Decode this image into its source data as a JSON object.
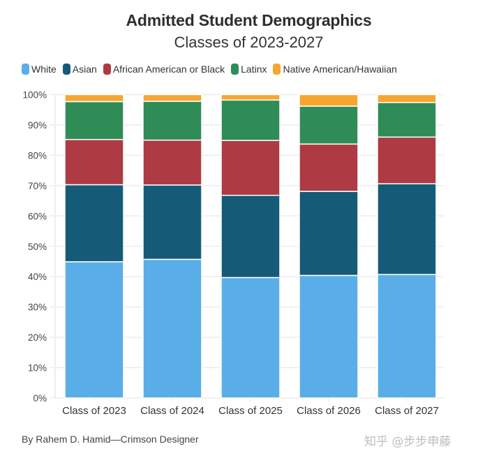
{
  "chart_data": {
    "type": "bar",
    "stacked": true,
    "title": "Admitted Student Demographics",
    "subtitle": "Classes of 2023-2027",
    "xlabel": "",
    "ylabel": "",
    "ylim": [
      0,
      100
    ],
    "y_ticks": [
      "0%",
      "10%",
      "20%",
      "30%",
      "40%",
      "50%",
      "60%",
      "70%",
      "80%",
      "90%",
      "100%"
    ],
    "grid": true,
    "legend_position": "top-left",
    "categories": [
      "Class of 2023",
      "Class of 2024",
      "Class of 2025",
      "Class of 2026",
      "Class of 2027"
    ],
    "series": [
      {
        "name": "White",
        "color": "#5aaee8",
        "values": [
          44.9,
          45.7,
          39.7,
          40.4,
          40.7
        ]
      },
      {
        "name": "Asian",
        "color": "#155b78",
        "values": [
          25.4,
          24.5,
          27.1,
          27.7,
          29.9
        ]
      },
      {
        "name": "African American or Black",
        "color": "#ae3a43",
        "values": [
          14.9,
          14.8,
          18.1,
          15.6,
          15.4
        ]
      },
      {
        "name": "Latinx",
        "color": "#2f8c57",
        "values": [
          12.5,
          12.8,
          13.3,
          12.5,
          11.4
        ]
      },
      {
        "name": "Native American/Hawaiian",
        "color": "#f6a62f",
        "values": [
          2.3,
          2.2,
          1.8,
          3.8,
          2.6
        ]
      }
    ]
  },
  "footer": {
    "byline": "By Rahem D. Hamid—Crimson Designer",
    "watermark": "知乎 @步步申藤"
  }
}
